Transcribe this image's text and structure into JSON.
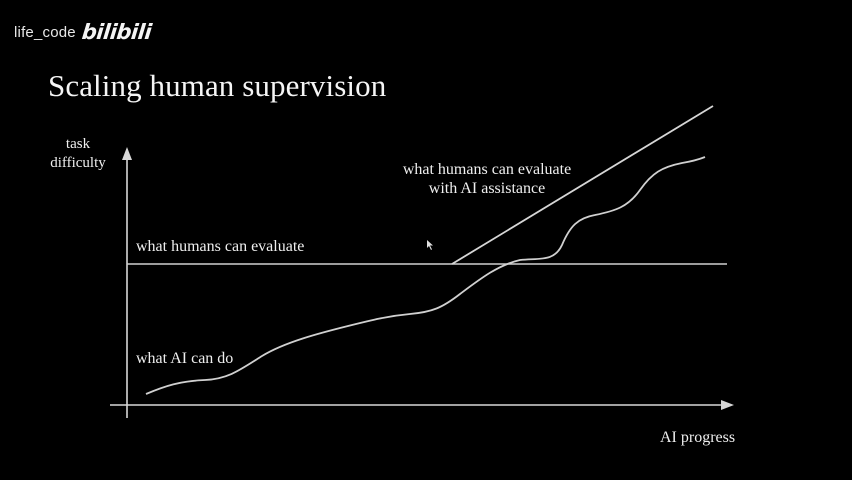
{
  "watermark": {
    "channel": "life_code",
    "logo": "bilibili"
  },
  "slide": {
    "title": "Scaling human supervision"
  },
  "diagram": {
    "y_axis_label_line1": "task",
    "y_axis_label_line2": "difficulty",
    "x_axis_label": "AI progress",
    "humans_line_label": "what humans can evaluate",
    "assisted_line_label_line1": "what humans can evaluate",
    "assisted_line_label_line2": "with AI assistance",
    "ai_curve_label": "what AI can do"
  },
  "colors": {
    "background": "#000000",
    "foreground": "#f2f2f2"
  }
}
